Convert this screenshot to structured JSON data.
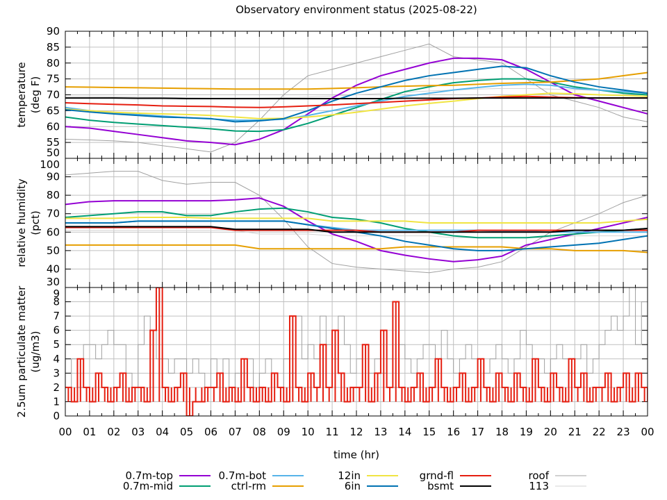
{
  "chart_data": {
    "type": "line",
    "title": "Observatory environment status (2025-08-22)",
    "xlabel": "time (hr)",
    "xlim": [
      0,
      24
    ],
    "x_tick_labels": [
      "00",
      "01",
      "02",
      "03",
      "04",
      "05",
      "06",
      "07",
      "08",
      "09",
      "10",
      "11",
      "12",
      "13",
      "14",
      "15",
      "16",
      "17",
      "18",
      "19",
      "20",
      "21",
      "22",
      "23",
      "00"
    ],
    "legend_placement": "bottom",
    "grid": true,
    "panels": [
      {
        "name": "temperature",
        "ylabel_lines": [
          "temperature",
          "(deg F)"
        ],
        "ylim": [
          50,
          90
        ],
        "y_ticks": [
          50,
          55,
          60,
          65,
          70,
          75,
          80,
          85,
          90
        ],
        "series": [
          {
            "name": "0.7m-top",
            "color": "#9400d3",
            "x": "hourly",
            "values": [
              60,
              59.5,
              58.5,
              57.5,
              56.5,
              55.5,
              55,
              54.3,
              56,
              59,
              64,
              69,
              73,
              76,
              78,
              80,
              81.5,
              81.5,
              81,
              78,
              74,
              70,
              68,
              66,
              64
            ]
          },
          {
            "name": "0.7m-mid",
            "color": "#009e73",
            "x": "hourly",
            "values": [
              63,
              62,
              61.3,
              60.8,
              60.3,
              59.8,
              59.3,
              58.6,
              58.5,
              59,
              61,
              63.5,
              66,
              68.5,
              71,
              72.5,
              73.8,
              74.5,
              75,
              75,
              74,
              72.5,
              71.5,
              70.5,
              70
            ]
          },
          {
            "name": "0.7m-bot",
            "color": "#56b4e9",
            "x": "hourly",
            "values": [
              66,
              65,
              64.3,
              63.8,
              63.3,
              62.8,
              62.4,
              62,
              62,
              62.3,
              63.5,
              65,
              66.5,
              68,
              69.5,
              70.5,
              71.5,
              72.3,
              73,
              73.3,
              73,
              72,
              71.5,
              71,
              70.5
            ]
          },
          {
            "name": "ctrl-rm",
            "color": "#e69f00",
            "x": "hourly",
            "values": [
              72.5,
              72.4,
              72.3,
              72.2,
              72.1,
              72,
              71.9,
              71.8,
              71.8,
              71.8,
              71.8,
              72,
              72.2,
              72.5,
              72.7,
              72.9,
              73,
              73.3,
              73.6,
              73.8,
              74,
              74.5,
              75,
              76,
              77
            ]
          },
          {
            "name": "12in",
            "color": "#f0e442",
            "x": "hourly",
            "values": [
              65.5,
              65,
              64.5,
              64.2,
              64,
              63.8,
              63.5,
              63,
              62.5,
              62.6,
              63,
              63.7,
              64.5,
              65.5,
              66.5,
              67.3,
              68,
              68.8,
              69.5,
              70,
              70.5,
              70.3,
              70,
              69.8,
              69.5
            ]
          },
          {
            "name": "6in",
            "color": "#0072b2",
            "x": "hourly",
            "values": [
              65.3,
              64.6,
              64,
              63.5,
              63,
              62.8,
              62.5,
              61.5,
              61.8,
              62.5,
              65,
              68,
              70.5,
              72.5,
              74.5,
              76,
              77,
              78,
              79,
              78.5,
              76,
              74,
              72.5,
              71.5,
              70.5
            ]
          },
          {
            "name": "grnd-fl",
            "color": "#e51e10",
            "x": "hourly",
            "values": [
              67.5,
              67.2,
              67,
              66.8,
              66.5,
              66.4,
              66.3,
              66.1,
              66,
              66.2,
              66.5,
              66.8,
              67.2,
              67.6,
              68,
              68.4,
              68.8,
              69,
              69.3,
              69.5,
              69.3,
              69.1,
              69,
              69,
              69
            ]
          },
          {
            "name": "bsmt",
            "color": "#000000",
            "x": "hourly",
            "values": [
              69,
              69,
              69,
              68.9,
              68.9,
              68.8,
              68.8,
              68.8,
              68.8,
              68.8,
              68.8,
              68.8,
              68.8,
              68.8,
              68.9,
              68.9,
              68.9,
              69,
              69,
              69,
              69,
              69,
              69,
              69,
              69
            ]
          },
          {
            "name": "roof",
            "color": "#a0a0a0",
            "x": "hourly",
            "values": [
              56,
              55.8,
              55.5,
              55,
              54,
              53,
              52,
              55,
              62,
              70,
              76,
              78,
              80,
              82,
              84,
              86,
              82,
              81,
              80,
              75,
              70,
              68,
              66,
              63,
              61.5
            ]
          },
          {
            "name": "113",
            "color": "#d3d3d3",
            "x": "hourly",
            "values": [
              69.5,
              69.5,
              69.4,
              69.3,
              69.2,
              69.1,
              69,
              69,
              69,
              69.1,
              69.3,
              69.6,
              70,
              70.4,
              70.8,
              71.2,
              71.5,
              71.8,
              72,
              72,
              71.8,
              71.6,
              71.4,
              71.2,
              71
            ]
          }
        ]
      },
      {
        "name": "relative humidity",
        "ylabel_lines": [
          "relative humidity",
          "(pct)"
        ],
        "ylim": [
          30,
          100
        ],
        "y_ticks": [
          30,
          40,
          50,
          60,
          70,
          80,
          90,
          100
        ],
        "series": [
          {
            "name": "0.7m-top",
            "color": "#9400d3",
            "x": "hourly",
            "values": [
              75,
              76.5,
              77,
              77,
              77,
              77,
              77,
              77.5,
              78.5,
              74,
              66,
              59,
              55,
              50,
              47.5,
              45.5,
              44,
              45,
              47,
              53,
              56,
              59,
              62,
              65,
              68
            ]
          },
          {
            "name": "0.7m-mid",
            "color": "#009e73",
            "x": "hourly",
            "values": [
              68,
              69,
              70,
              71,
              71,
              69,
              69,
              71,
              72.5,
              73,
              71,
              68,
              67,
              65,
              62,
              60,
              58,
              57,
              57,
              57,
              58,
              59,
              60,
              61,
              62
            ]
          },
          {
            "name": "0.7m-bot",
            "color": "#56b4e9",
            "x": "hourly",
            "values": [
              65,
              65,
              65,
              66,
              66,
              66,
              66,
              66,
              66,
              66,
              64,
              62.5,
              61,
              61,
              61,
              61,
              61,
              61,
              60.5,
              60.5,
              60,
              60,
              60,
              60,
              60
            ]
          },
          {
            "name": "ctrl-rm",
            "color": "#e69f00",
            "x": "hourly",
            "values": [
              53,
              53,
              53,
              53,
              53,
              53,
              53,
              53,
              51,
              51,
              51,
              51,
              51,
              51,
              52,
              52,
              52,
              52,
              52,
              51,
              51,
              50,
              50,
              50,
              49
            ]
          },
          {
            "name": "12in",
            "color": "#f0e442",
            "x": "hourly",
            "values": [
              67.5,
              67.5,
              67.5,
              68,
              68,
              68,
              67.5,
              67.5,
              67.5,
              67.5,
              67.5,
              66,
              66,
              66,
              66,
              65,
              65,
              65,
              65,
              65,
              65,
              65,
              65,
              66,
              67
            ]
          },
          {
            "name": "6in",
            "color": "#0072b2",
            "x": "hourly",
            "values": [
              65,
              65,
              65,
              66,
              66,
              66,
              66,
              66,
              66,
              66,
              64,
              62,
              60,
              58,
              55,
              53,
              51,
              50,
              50,
              51,
              52,
              53,
              54,
              56,
              58
            ]
          },
          {
            "name": "grnd-fl",
            "color": "#e51e10",
            "x": "hourly",
            "values": [
              62.5,
              62.5,
              62.5,
              62.5,
              62.5,
              62.5,
              62.5,
              61,
              61,
              61,
              61,
              61,
              61,
              60,
              60,
              60,
              60,
              61,
              61,
              61,
              61,
              61,
              61,
              61,
              61
            ]
          },
          {
            "name": "bsmt",
            "color": "#000000",
            "x": "hourly",
            "values": [
              63,
              63,
              63,
              63,
              63,
              63,
              63,
              61.5,
              61.5,
              61.5,
              61.5,
              60,
              60,
              60,
              60,
              60,
              60,
              60,
              60,
              60,
              60,
              61,
              61,
              61,
              62
            ]
          },
          {
            "name": "roof",
            "color": "#a0a0a0",
            "x": "hourly",
            "values": [
              91,
              92,
              93,
              93,
              88,
              86,
              87,
              87,
              80,
              67,
              52,
              43,
              41,
              40,
              39,
              38,
              40,
              41,
              44,
              52,
              60,
              65,
              70,
              76,
              80
            ]
          },
          {
            "name": "113",
            "color": "#d3d3d3",
            "x": "hourly",
            "values": [
              61,
              61,
              61,
              61,
              61,
              61,
              61,
              61,
              59,
              59,
              59,
              58,
              58,
              58,
              58,
              58,
              57,
              57,
              57,
              57,
              57,
              58,
              58,
              58,
              58
            ]
          }
        ]
      },
      {
        "name": "2.5um particulate matter",
        "ylabel_lines": [
          "2.5um particulate matter",
          "(ug/m3)"
        ],
        "ylim": [
          0,
          9
        ],
        "y_ticks": [
          0,
          1,
          2,
          3,
          4,
          5,
          6,
          7,
          8,
          9
        ],
        "series": [
          {
            "name": "113",
            "color": "#a0a0a0",
            "x": "quarter-hourly",
            "values": [
              2,
              4,
              2,
              5,
              5,
              4,
              5,
              6,
              5,
              5,
              3,
              2,
              5,
              7,
              6,
              4,
              4,
              3,
              4,
              4,
              3,
              4,
              3,
              2,
              4,
              3,
              4,
              2,
              3,
              3,
              4,
              2,
              3,
              4,
              3,
              2,
              4,
              3,
              7,
              4,
              5,
              4,
              7,
              5,
              4,
              7,
              5,
              3,
              4,
              5,
              3,
              4,
              3,
              4,
              2,
              5,
              4,
              3,
              4,
              5,
              5,
              4,
              6,
              4,
              3,
              4,
              5,
              4,
              4,
              3,
              4,
              5,
              4,
              3,
              4,
              6,
              5,
              4,
              4,
              3,
              4,
              5,
              4,
              3,
              4,
              5,
              3,
              4,
              5,
              6,
              7,
              6,
              7,
              9,
              5,
              8,
              8
            ]
          },
          {
            "name": "grnd-fl",
            "color": "#e51e10",
            "x": "quarter-hourly",
            "values": [
              2,
              1,
              4,
              2,
              1,
              3,
              2,
              1,
              2,
              3,
              1,
              2,
              2,
              1,
              6,
              9,
              2,
              1,
              2,
              3,
              0,
              1,
              1,
              2,
              2,
              3,
              1,
              2,
              1,
              4,
              2,
              1,
              2,
              1,
              3,
              2,
              1,
              7,
              2,
              1,
              3,
              2,
              5,
              2,
              6,
              3,
              1,
              2,
              2,
              5,
              1,
              3,
              6,
              2,
              8,
              2,
              1,
              2,
              3,
              1,
              2,
              4,
              2,
              1,
              2,
              3,
              1,
              2,
              4,
              2,
              1,
              3,
              2,
              1,
              3,
              2,
              1,
              4,
              2,
              1,
              3,
              2,
              1,
              4,
              2,
              3,
              1,
              2,
              2,
              3,
              1,
              2,
              3,
              1,
              3,
              2,
              1
            ]
          }
        ]
      }
    ],
    "legend": [
      "0.7m-top",
      "0.7m-mid",
      "0.7m-bot",
      "ctrl-rm",
      "12in",
      "6in",
      "grnd-fl",
      "bsmt",
      "roof",
      "113"
    ]
  }
}
